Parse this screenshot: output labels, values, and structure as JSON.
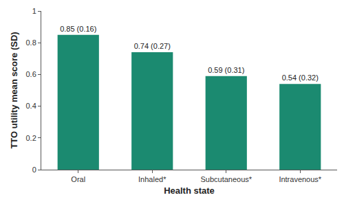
{
  "chart_data": {
    "type": "bar",
    "xlabel": "Health state",
    "ylabel": "TTO utility mean score (SD)",
    "categories": [
      "Oral",
      "Inhaled*",
      "Subcutaneous*",
      "Intravenous*"
    ],
    "values": [
      0.85,
      0.74,
      0.59,
      0.54
    ],
    "value_labels": [
      "0.85 (0.16)",
      "0.74 (0.27)",
      "0.59 (0.31)",
      "0.54 (0.32)"
    ],
    "data_labels": true,
    "color": "#1b8a70",
    "ylim": [
      0,
      1
    ],
    "yticks": [
      0,
      0.2,
      0.4,
      0.6,
      0.8,
      1
    ],
    "grid": false
  }
}
